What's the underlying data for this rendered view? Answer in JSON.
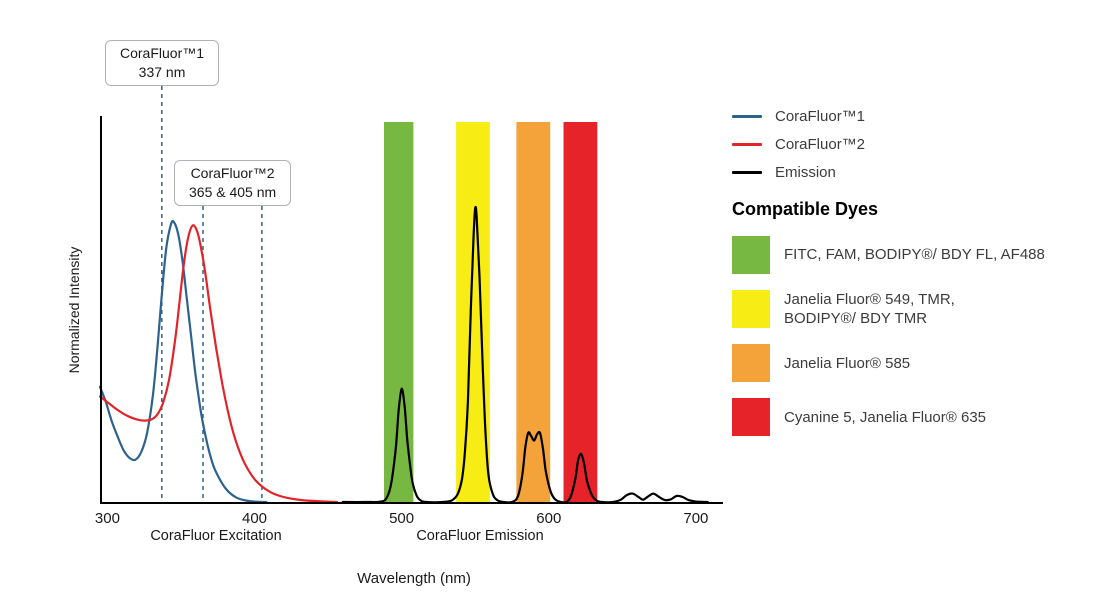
{
  "chart_data": {
    "type": "line",
    "xlabel": "Wavelength (nm)",
    "ylabel": "Normalized Intensity",
    "x_range_nm": [
      295,
      715
    ],
    "x_ticks": [
      300,
      400,
      500,
      600,
      700
    ],
    "y_range": [
      0,
      1
    ],
    "y_ticks": [],
    "grid": false,
    "legend_position": "right",
    "section_labels": [
      "CoraFluor Excitation",
      "CoraFluor Emission"
    ],
    "marker_color": "#2d628f",
    "annotations": [
      {
        "line1": "CoraFluor™1",
        "line2": "337 nm",
        "markers_nm": [
          337
        ]
      },
      {
        "line1": "CoraFluor™2",
        "line2": "365 & 405 nm",
        "markers_nm": [
          365,
          405
        ]
      }
    ],
    "bands": [
      {
        "name": "green",
        "from_nm": 488,
        "to_nm": 508,
        "color": "#77b843"
      },
      {
        "name": "yellow",
        "from_nm": 537,
        "to_nm": 560,
        "color": "#f7ec13"
      },
      {
        "name": "orange",
        "from_nm": 578,
        "to_nm": 601,
        "color": "#f4a23a"
      },
      {
        "name": "red",
        "from_nm": 610,
        "to_nm": 633,
        "color": "#e52329"
      }
    ],
    "series": [
      {
        "name": "CoraFluor™1",
        "color": "#2d628f",
        "points": [
          [
            295,
            0.3
          ],
          [
            299,
            0.26
          ],
          [
            303,
            0.21
          ],
          [
            307,
            0.17
          ],
          [
            311,
            0.135
          ],
          [
            315,
            0.115
          ],
          [
            319,
            0.11
          ],
          [
            323,
            0.13
          ],
          [
            327,
            0.18
          ],
          [
            331,
            0.28
          ],
          [
            334,
            0.4
          ],
          [
            337,
            0.54
          ],
          [
            340,
            0.66
          ],
          [
            343,
            0.72
          ],
          [
            345,
            0.73
          ],
          [
            348,
            0.7
          ],
          [
            351,
            0.63
          ],
          [
            354,
            0.53
          ],
          [
            357,
            0.43
          ],
          [
            360,
            0.33
          ],
          [
            364,
            0.225
          ],
          [
            368,
            0.15
          ],
          [
            372,
            0.095
          ],
          [
            377,
            0.055
          ],
          [
            382,
            0.028
          ],
          [
            388,
            0.011
          ],
          [
            394,
            0.004
          ],
          [
            400,
            0.001
          ],
          [
            408,
            0
          ]
        ]
      },
      {
        "name": "CoraFluor™2",
        "color": "#e1242a",
        "points": [
          [
            295,
            0.275
          ],
          [
            300,
            0.26
          ],
          [
            305,
            0.245
          ],
          [
            310,
            0.232
          ],
          [
            315,
            0.222
          ],
          [
            320,
            0.215
          ],
          [
            325,
            0.212
          ],
          [
            330,
            0.215
          ],
          [
            334,
            0.228
          ],
          [
            338,
            0.26
          ],
          [
            342,
            0.32
          ],
          [
            346,
            0.42
          ],
          [
            349,
            0.52
          ],
          [
            352,
            0.62
          ],
          [
            355,
            0.69
          ],
          [
            358,
            0.72
          ],
          [
            361,
            0.705
          ],
          [
            364,
            0.655
          ],
          [
            367,
            0.585
          ],
          [
            370,
            0.5
          ],
          [
            374,
            0.4
          ],
          [
            378,
            0.31
          ],
          [
            382,
            0.235
          ],
          [
            386,
            0.175
          ],
          [
            391,
            0.12
          ],
          [
            396,
            0.082
          ],
          [
            401,
            0.055
          ],
          [
            407,
            0.035
          ],
          [
            414,
            0.02
          ],
          [
            422,
            0.011
          ],
          [
            432,
            0.005
          ],
          [
            444,
            0.002
          ],
          [
            456,
            0
          ]
        ]
      },
      {
        "name": "Emission",
        "color": "#000000",
        "points": [
          [
            460,
            0
          ],
          [
            475,
            0
          ],
          [
            486,
            0.001
          ],
          [
            490,
            0.012
          ],
          [
            493,
            0.05
          ],
          [
            496,
            0.14
          ],
          [
            498,
            0.24
          ],
          [
            500,
            0.295
          ],
          [
            502,
            0.25
          ],
          [
            504,
            0.155
          ],
          [
            507,
            0.06
          ],
          [
            510,
            0.018
          ],
          [
            513,
            0.004
          ],
          [
            517,
            0
          ],
          [
            528,
            0
          ],
          [
            534,
            0.004
          ],
          [
            538,
            0.02
          ],
          [
            541,
            0.06
          ],
          [
            543,
            0.13
          ],
          [
            545,
            0.26
          ],
          [
            547,
            0.5
          ],
          [
            549,
            0.7
          ],
          [
            550,
            0.765
          ],
          [
            551,
            0.74
          ],
          [
            553,
            0.58
          ],
          [
            555,
            0.36
          ],
          [
            557,
            0.18
          ],
          [
            559,
            0.07
          ],
          [
            562,
            0.02
          ],
          [
            565,
            0.005
          ],
          [
            569,
            0
          ],
          [
            575,
            0
          ],
          [
            579,
            0.015
          ],
          [
            582,
            0.07
          ],
          [
            584,
            0.14
          ],
          [
            586,
            0.18
          ],
          [
            588,
            0.172
          ],
          [
            590,
            0.16
          ],
          [
            592,
            0.176
          ],
          [
            594,
            0.18
          ],
          [
            596,
            0.14
          ],
          [
            598,
            0.08
          ],
          [
            601,
            0.03
          ],
          [
            604,
            0.008
          ],
          [
            608,
            0
          ],
          [
            612,
            0
          ],
          [
            615,
            0.015
          ],
          [
            618,
            0.06
          ],
          [
            620,
            0.11
          ],
          [
            622,
            0.125
          ],
          [
            624,
            0.1
          ],
          [
            626,
            0.055
          ],
          [
            629,
            0.02
          ],
          [
            632,
            0.005
          ],
          [
            636,
            0
          ],
          [
            644,
            0
          ],
          [
            649,
            0.006
          ],
          [
            653,
            0.018
          ],
          [
            657,
            0.022
          ],
          [
            661,
            0.013
          ],
          [
            664,
            0.006
          ],
          [
            667,
            0.013
          ],
          [
            671,
            0.022
          ],
          [
            675,
            0.013
          ],
          [
            679,
            0.005
          ],
          [
            683,
            0.007
          ],
          [
            687,
            0.016
          ],
          [
            691,
            0.013
          ],
          [
            695,
            0.005
          ],
          [
            700,
            0.001
          ],
          [
            708,
            0
          ]
        ]
      }
    ]
  },
  "compatible_dyes": {
    "heading": "Compatible Dyes",
    "items": [
      {
        "name": "green",
        "color": "#77b843",
        "label": "FITC, FAM, BODIPY®/ BDY FL, AF488"
      },
      {
        "name": "yellow",
        "color": "#f7ec13",
        "label": "Janelia Fluor® 549, TMR,\nBODIPY®/ BDY TMR"
      },
      {
        "name": "orange",
        "color": "#f4a23a",
        "label": "Janelia Fluor® 585"
      },
      {
        "name": "red",
        "color": "#e52329",
        "label": "Cyanine 5, Janelia Fluor® 635"
      }
    ]
  }
}
